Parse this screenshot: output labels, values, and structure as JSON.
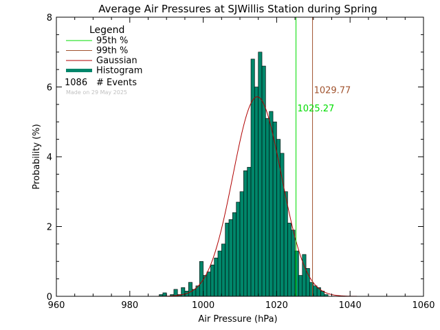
{
  "chart_data": {
    "type": "bar",
    "title": "Average Air Pressures at SJWillis Station during Spring",
    "xlabel": "Air Pressure (hPa)",
    "ylabel": "Probability (%)",
    "xlim": [
      960,
      1060
    ],
    "ylim": [
      0,
      8
    ],
    "xticks": [
      "960",
      "980",
      "1000",
      "1020",
      "1040",
      "1060"
    ],
    "yticks": [
      "0",
      "2",
      "4",
      "6",
      "8"
    ],
    "grid": false,
    "legend": {
      "title": "Legend",
      "placement": "top-left",
      "entries": [
        {
          "label": "95th %",
          "color": "#00dd00"
        },
        {
          "label": "99th %",
          "color": "#a0522d"
        },
        {
          "label": "Gaussian",
          "color": "#b00000"
        },
        {
          "label": "Histogram",
          "color": "#00866a"
        }
      ],
      "events_count": "1086",
      "events_label": "# Events",
      "made_on": "Made on 29 May 2025"
    },
    "histogram": {
      "bin_width": 1,
      "bins": [
        [
          988,
          0.05
        ],
        [
          989,
          0.1
        ],
        [
          990,
          0.0
        ],
        [
          991,
          0.05
        ],
        [
          992,
          0.2
        ],
        [
          993,
          0.05
        ],
        [
          994,
          0.25
        ],
        [
          995,
          0.15
        ],
        [
          996,
          0.4
        ],
        [
          997,
          0.2
        ],
        [
          998,
          0.3
        ],
        [
          999,
          1.0
        ],
        [
          1000,
          0.6
        ],
        [
          1001,
          0.7
        ],
        [
          1002,
          0.9
        ],
        [
          1003,
          1.1
        ],
        [
          1004,
          1.3
        ],
        [
          1005,
          1.5
        ],
        [
          1006,
          2.1
        ],
        [
          1007,
          2.2
        ],
        [
          1008,
          2.4
        ],
        [
          1009,
          2.7
        ],
        [
          1010,
          3.0
        ],
        [
          1011,
          3.6
        ],
        [
          1012,
          3.7
        ],
        [
          1013,
          6.8
        ],
        [
          1014,
          6.0
        ],
        [
          1015,
          7.0
        ],
        [
          1016,
          6.6
        ],
        [
          1017,
          5.1
        ],
        [
          1018,
          5.3
        ],
        [
          1019,
          5.0
        ],
        [
          1020,
          4.5
        ],
        [
          1021,
          4.1
        ],
        [
          1022,
          3.0
        ],
        [
          1023,
          2.1
        ],
        [
          1024,
          1.9
        ],
        [
          1025,
          1.3
        ],
        [
          1026,
          0.6
        ],
        [
          1027,
          1.2
        ],
        [
          1028,
          0.8
        ],
        [
          1029,
          0.4
        ],
        [
          1030,
          0.3
        ],
        [
          1031,
          0.25
        ],
        [
          1032,
          0.15
        ],
        [
          1033,
          0.05
        ]
      ],
      "color": "#00866a"
    },
    "gaussian": {
      "mean": 1014.7,
      "peak": 5.72,
      "sigma": 6.6,
      "color": "#b00000"
    },
    "percentile_95": {
      "value": 1025.27,
      "label": "1025.27",
      "color": "#00dd00"
    },
    "percentile_99": {
      "value": 1029.77,
      "label": "1029.77",
      "color": "#a0522d"
    }
  }
}
